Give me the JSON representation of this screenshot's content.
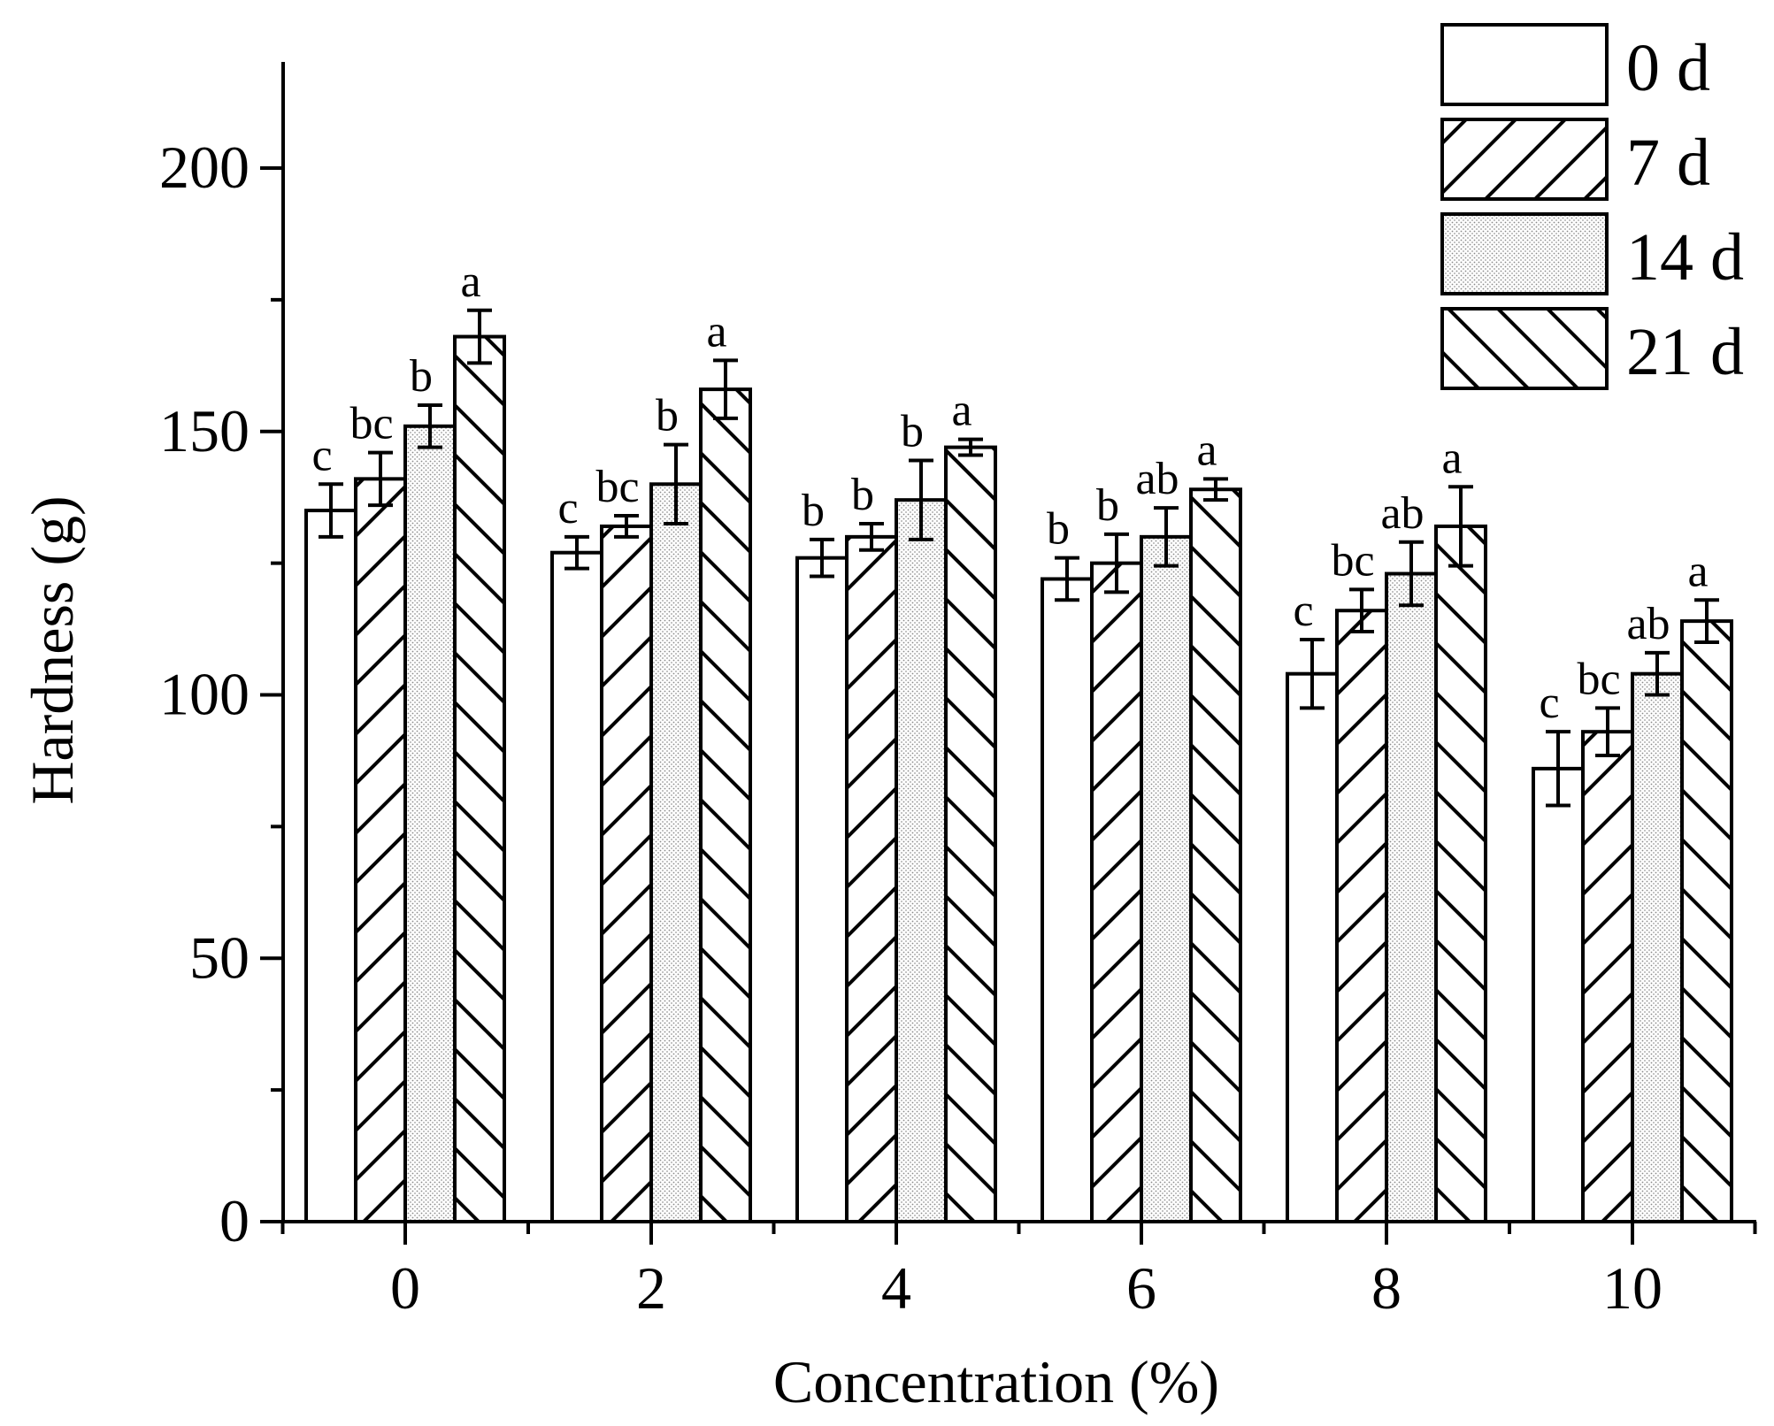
{
  "chart_data": {
    "type": "bar",
    "title": "",
    "xlabel": "Concentration (%)",
    "ylabel": "Hardness (g)",
    "ylim": [
      0,
      220
    ],
    "yticks": [
      0,
      50,
      100,
      150,
      200
    ],
    "yticks_minor": [
      25,
      75,
      125,
      175
    ],
    "categories": [
      "0",
      "2",
      "4",
      "6",
      "8",
      "10"
    ],
    "legend_position": "top-right",
    "series": [
      {
        "name": "0 d",
        "pattern": "blank",
        "values": [
          135,
          127,
          126,
          122,
          104,
          86
        ],
        "errors": [
          5,
          3,
          3.5,
          4,
          6.5,
          7
        ],
        "labels": [
          "c",
          "c",
          "b",
          "b",
          "c",
          "c"
        ]
      },
      {
        "name": "7 d",
        "pattern": "forward-hatch",
        "values": [
          141,
          132,
          130,
          125,
          116,
          93
        ],
        "errors": [
          5,
          2,
          2.5,
          5.5,
          4,
          4.5
        ],
        "labels": [
          "bc",
          "bc",
          "b",
          "b",
          "bc",
          "bc"
        ]
      },
      {
        "name": "14 d",
        "pattern": "dots",
        "values": [
          151,
          140,
          137,
          130,
          123,
          104
        ],
        "errors": [
          4,
          7.5,
          7.5,
          5.5,
          6,
          4
        ],
        "labels": [
          "b",
          "b",
          "b",
          "ab",
          "ab",
          "ab"
        ]
      },
      {
        "name": "21 d",
        "pattern": "back-hatch",
        "values": [
          168,
          158,
          147,
          139,
          132,
          114
        ],
        "errors": [
          5,
          5.5,
          1.5,
          2,
          7.5,
          4
        ],
        "labels": [
          "a",
          "a",
          "a",
          "a",
          "a",
          "a"
        ]
      }
    ]
  }
}
